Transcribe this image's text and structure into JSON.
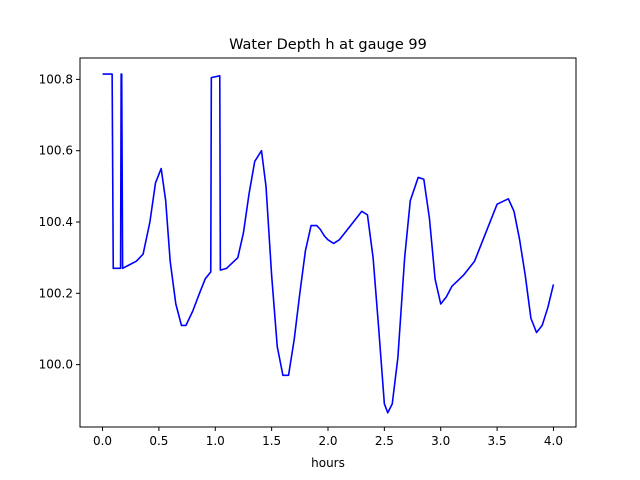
{
  "chart_data": {
    "type": "line",
    "title": "Water Depth h at gauge 99",
    "xlabel": "hours",
    "ylabel": "",
    "xlim": [
      -0.2,
      4.2
    ],
    "ylim": [
      99.825,
      100.86
    ],
    "grid": false,
    "legend": "none",
    "x_ticks": [
      0.0,
      0.5,
      1.0,
      1.5,
      2.0,
      2.5,
      3.0,
      3.5,
      4.0
    ],
    "x_tick_labels": [
      "0.0",
      "0.5",
      "1.0",
      "1.5",
      "2.0",
      "2.5",
      "3.0",
      "3.5",
      "4.0"
    ],
    "y_ticks": [
      100.0,
      100.2,
      100.4,
      100.6,
      100.8
    ],
    "y_tick_labels": [
      "100.0",
      "100.2",
      "100.4",
      "100.6",
      "100.8"
    ],
    "series": [
      {
        "color": "#0000ff",
        "x": [
          0.0,
          0.085,
          0.095,
          0.16,
          0.165,
          0.17,
          0.178,
          0.3,
          0.36,
          0.42,
          0.47,
          0.52,
          0.56,
          0.6,
          0.65,
          0.7,
          0.74,
          0.8,
          0.86,
          0.91,
          0.96,
          0.965,
          1.04,
          1.045,
          1.1,
          1.2,
          1.25,
          1.3,
          1.35,
          1.41,
          1.45,
          1.5,
          1.55,
          1.6,
          1.65,
          1.7,
          1.75,
          1.8,
          1.85,
          1.9,
          1.93,
          1.97,
          2.0,
          2.05,
          2.1,
          2.2,
          2.3,
          2.35,
          2.4,
          2.45,
          2.5,
          2.53,
          2.57,
          2.62,
          2.68,
          2.73,
          2.8,
          2.85,
          2.9,
          2.95,
          3.0,
          3.05,
          3.1,
          3.2,
          3.3,
          3.4,
          3.5,
          3.6,
          3.65,
          3.7,
          3.75,
          3.8,
          3.85,
          3.9,
          3.95,
          4.0
        ],
        "values": [
          100.815,
          100.815,
          100.27,
          100.27,
          100.815,
          100.815,
          100.27,
          100.29,
          100.31,
          100.4,
          100.51,
          100.55,
          100.46,
          100.29,
          100.17,
          100.11,
          100.11,
          100.15,
          100.2,
          100.24,
          100.26,
          100.805,
          100.81,
          100.265,
          100.27,
          100.3,
          100.37,
          100.48,
          100.57,
          100.6,
          100.5,
          100.25,
          100.05,
          99.97,
          99.97,
          100.07,
          100.2,
          100.32,
          100.39,
          100.39,
          100.38,
          100.36,
          100.35,
          100.34,
          100.35,
          100.39,
          100.43,
          100.42,
          100.3,
          100.1,
          99.89,
          99.865,
          99.89,
          100.02,
          100.3,
          100.46,
          100.525,
          100.52,
          100.41,
          100.24,
          100.17,
          100.19,
          100.22,
          100.25,
          100.29,
          100.37,
          100.45,
          100.465,
          100.43,
          100.35,
          100.25,
          100.13,
          100.09,
          100.11,
          100.16,
          100.225
        ]
      }
    ]
  }
}
